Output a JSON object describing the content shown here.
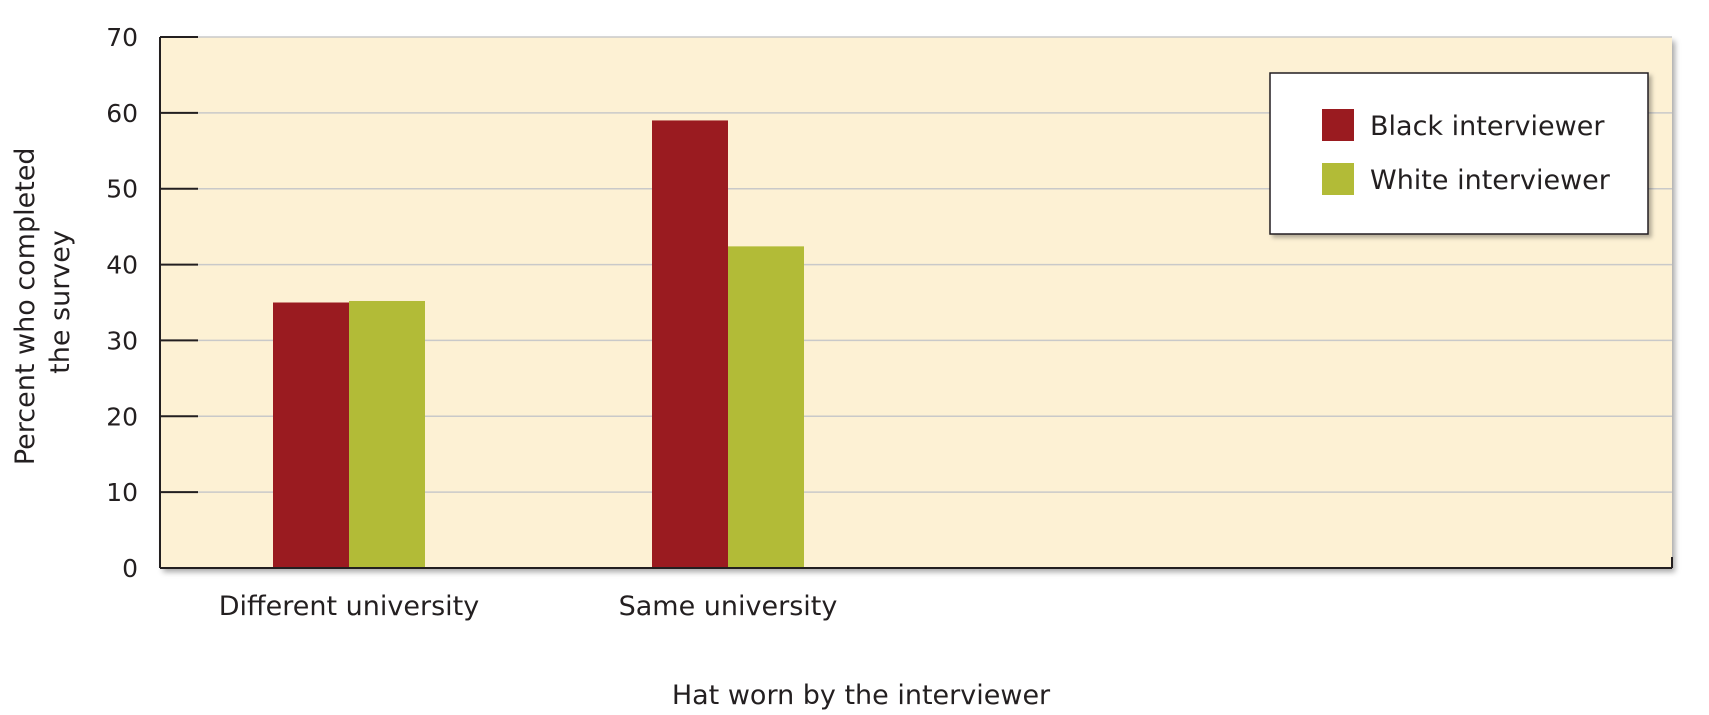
{
  "chart_data": {
    "type": "bar",
    "categories": [
      "Different university",
      "Same university"
    ],
    "series": [
      {
        "name": "Black interviewer",
        "values": [
          35,
          59
        ],
        "color": "#9a1b20"
      },
      {
        "name": "White interviewer",
        "values": [
          35.2,
          42.4
        ],
        "color": "#b2bb37"
      }
    ],
    "xlabel": "Hat worn by the interviewer",
    "ylabel": [
      "Percent who completed",
      "the survey"
    ],
    "ylim": [
      0,
      70
    ],
    "yticks": [
      0,
      10,
      20,
      30,
      40,
      50,
      60,
      70
    ],
    "grid": true,
    "legend_position": "top-right",
    "plot_background": "#fdf1d4",
    "grid_color": "#c9c9c9"
  }
}
